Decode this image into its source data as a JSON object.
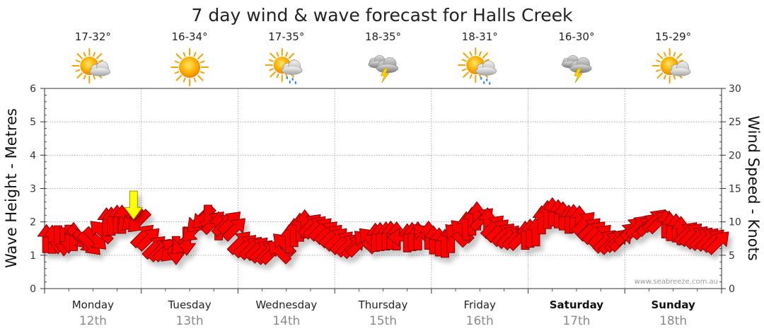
{
  "chart_data": {
    "type": "line",
    "title": "7 day wind & wave forecast for Halls Creek",
    "ylabel_left": "Wave Height - Metres",
    "ylabel_right": "Wind Speed - Knots",
    "ylim_left": [
      0,
      6
    ],
    "ylim_right": [
      0,
      30
    ],
    "yticks_left": [
      "0",
      "1",
      "2",
      "3",
      "4",
      "5",
      "6"
    ],
    "yticks_right": [
      "0",
      "5",
      "10",
      "15",
      "20",
      "25",
      "30"
    ],
    "grid": true,
    "credit": "www.seabreeze.com.au",
    "days": [
      {
        "name": "Monday",
        "date": "12th",
        "temp": "17-32°",
        "weather": "partly-cloudy-icon",
        "bold": false
      },
      {
        "name": "Tuesday",
        "date": "13th",
        "temp": "16-34°",
        "weather": "sunny-icon",
        "bold": false
      },
      {
        "name": "Wednesday",
        "date": "14th",
        "temp": "17-35°",
        "weather": "shower-icon",
        "bold": false
      },
      {
        "name": "Thursday",
        "date": "15th",
        "temp": "18-35°",
        "weather": "storm-icon",
        "bold": false
      },
      {
        "name": "Friday",
        "date": "16th",
        "temp": "18-31°",
        "weather": "sun-shower-icon",
        "bold": false
      },
      {
        "name": "Saturday",
        "date": "17th",
        "temp": "16-30°",
        "weather": "storm-icon",
        "bold": true
      },
      {
        "name": "Sunday",
        "date": "18th",
        "temp": "15-29°",
        "weather": "partly-cloudy-icon",
        "bold": true
      }
    ],
    "series": [
      {
        "type": "wind",
        "unit": "knots",
        "color": "#ff0000",
        "x": [
          0.02,
          0.08,
          0.14,
          0.2,
          0.25,
          0.3,
          0.36,
          0.42,
          0.47,
          0.53,
          0.58,
          0.64,
          0.69,
          0.75,
          0.8,
          0.86,
          0.91,
          0.97,
          1.02,
          1.08,
          1.14,
          1.2,
          1.25,
          1.31,
          1.36,
          1.42,
          1.47,
          1.53,
          1.58,
          1.64,
          1.69,
          1.75,
          1.8,
          1.86,
          1.92,
          1.97,
          2.02,
          2.08,
          2.14,
          2.2,
          2.25,
          2.31,
          2.36,
          2.42,
          2.47,
          2.53,
          2.58,
          2.64,
          2.69,
          2.75,
          2.8,
          2.86,
          2.92,
          2.97,
          3.02,
          3.08,
          3.14,
          3.2,
          3.25,
          3.31,
          3.36,
          3.42,
          3.47,
          3.53,
          3.58,
          3.64,
          3.69,
          3.75,
          3.8,
          3.86,
          3.92,
          3.97,
          4.02,
          4.08,
          4.14,
          4.2,
          4.25,
          4.31,
          4.36,
          4.42,
          4.47,
          4.53,
          4.58,
          4.64,
          4.69,
          4.75,
          4.8,
          4.86,
          4.92,
          4.97,
          5.02,
          5.08,
          5.14,
          5.2,
          5.25,
          5.31,
          5.36,
          5.42,
          5.47,
          5.53,
          5.58,
          5.64,
          5.69,
          5.75,
          5.8,
          5.86,
          5.92,
          5.97,
          6.02,
          6.08,
          6.14,
          6.2,
          6.25,
          6.31,
          6.36,
          6.42,
          6.47,
          6.53,
          6.58,
          6.64,
          6.69,
          6.75,
          6.8,
          6.86,
          6.92,
          6.97
        ],
        "values": [
          7.5,
          7.4,
          7.3,
          7.0,
          7.4,
          7.8,
          7.6,
          7.0,
          6.6,
          7.4,
          8.6,
          10.0,
          10.1,
          10.4,
          10.4,
          10.2,
          10.3,
          10.0,
          8.0,
          7.5,
          6.3,
          5.9,
          5.9,
          5.6,
          5.7,
          6.7,
          7.1,
          8.6,
          10.0,
          10.6,
          10.4,
          10.0,
          9.4,
          9.7,
          10.0,
          9.0,
          7.0,
          6.5,
          6.2,
          6.1,
          5.7,
          5.5,
          5.5,
          5.6,
          6.7,
          7.5,
          8.4,
          9.2,
          9.7,
          9.6,
          9.3,
          9.0,
          8.5,
          8.0,
          7.5,
          7.0,
          6.6,
          6.4,
          6.6,
          7.1,
          7.5,
          7.7,
          7.8,
          7.9,
          8.0,
          7.9,
          7.7,
          7.6,
          7.8,
          7.9,
          8.1,
          8.0,
          7.3,
          7.0,
          6.8,
          7.5,
          8.1,
          8.7,
          9.4,
          10.1,
          10.9,
          10.5,
          10.0,
          9.4,
          8.8,
          8.2,
          7.9,
          7.7,
          7.6,
          8.0,
          8.3,
          8.5,
          10.3,
          11.1,
          11.5,
          11.2,
          10.9,
          10.4,
          10.5,
          10.3,
          9.9,
          9.0,
          8.5,
          8.0,
          7.2,
          7.0,
          7.3,
          7.4,
          8.3,
          9.1,
          9.4,
          9.2,
          9.7,
          10.3,
          10.1,
          9.7,
          9.3,
          9.1,
          8.7,
          8.4,
          8.2,
          7.8,
          7.6,
          7.5,
          7.3,
          7.0
        ],
        "direction_deg": [
          270,
          270,
          90,
          90,
          90,
          270,
          45,
          45,
          45,
          45,
          225,
          270,
          270,
          270,
          270,
          135,
          135,
          135,
          315,
          315,
          315,
          315,
          315,
          135,
          90,
          135,
          90,
          135,
          135,
          135,
          90,
          315,
          270,
          315,
          315,
          315,
          315,
          315,
          315,
          315,
          315,
          315,
          315,
          225,
          225,
          270,
          270,
          270,
          270,
          315,
          315,
          315,
          315,
          315,
          315,
          315,
          315,
          315,
          315,
          225,
          225,
          270,
          270,
          270,
          270,
          270,
          180,
          270,
          270,
          270,
          225,
          270,
          270,
          270,
          270,
          270,
          225,
          225,
          270,
          270,
          270,
          315,
          270,
          315,
          315,
          315,
          315,
          315,
          315,
          270,
          270,
          270,
          270,
          270,
          270,
          270,
          270,
          270,
          270,
          270,
          315,
          315,
          315,
          315,
          315,
          315,
          315,
          315,
          315,
          315,
          315,
          315,
          315,
          315,
          315,
          270,
          270,
          270,
          270,
          315,
          315,
          315,
          315,
          315,
          315,
          315
        ]
      },
      {
        "type": "wave",
        "unit": "metres",
        "color": "#ffff00",
        "x": [
          0.92
        ],
        "values": [
          2.5
        ],
        "direction_deg": [
          90
        ]
      }
    ]
  }
}
